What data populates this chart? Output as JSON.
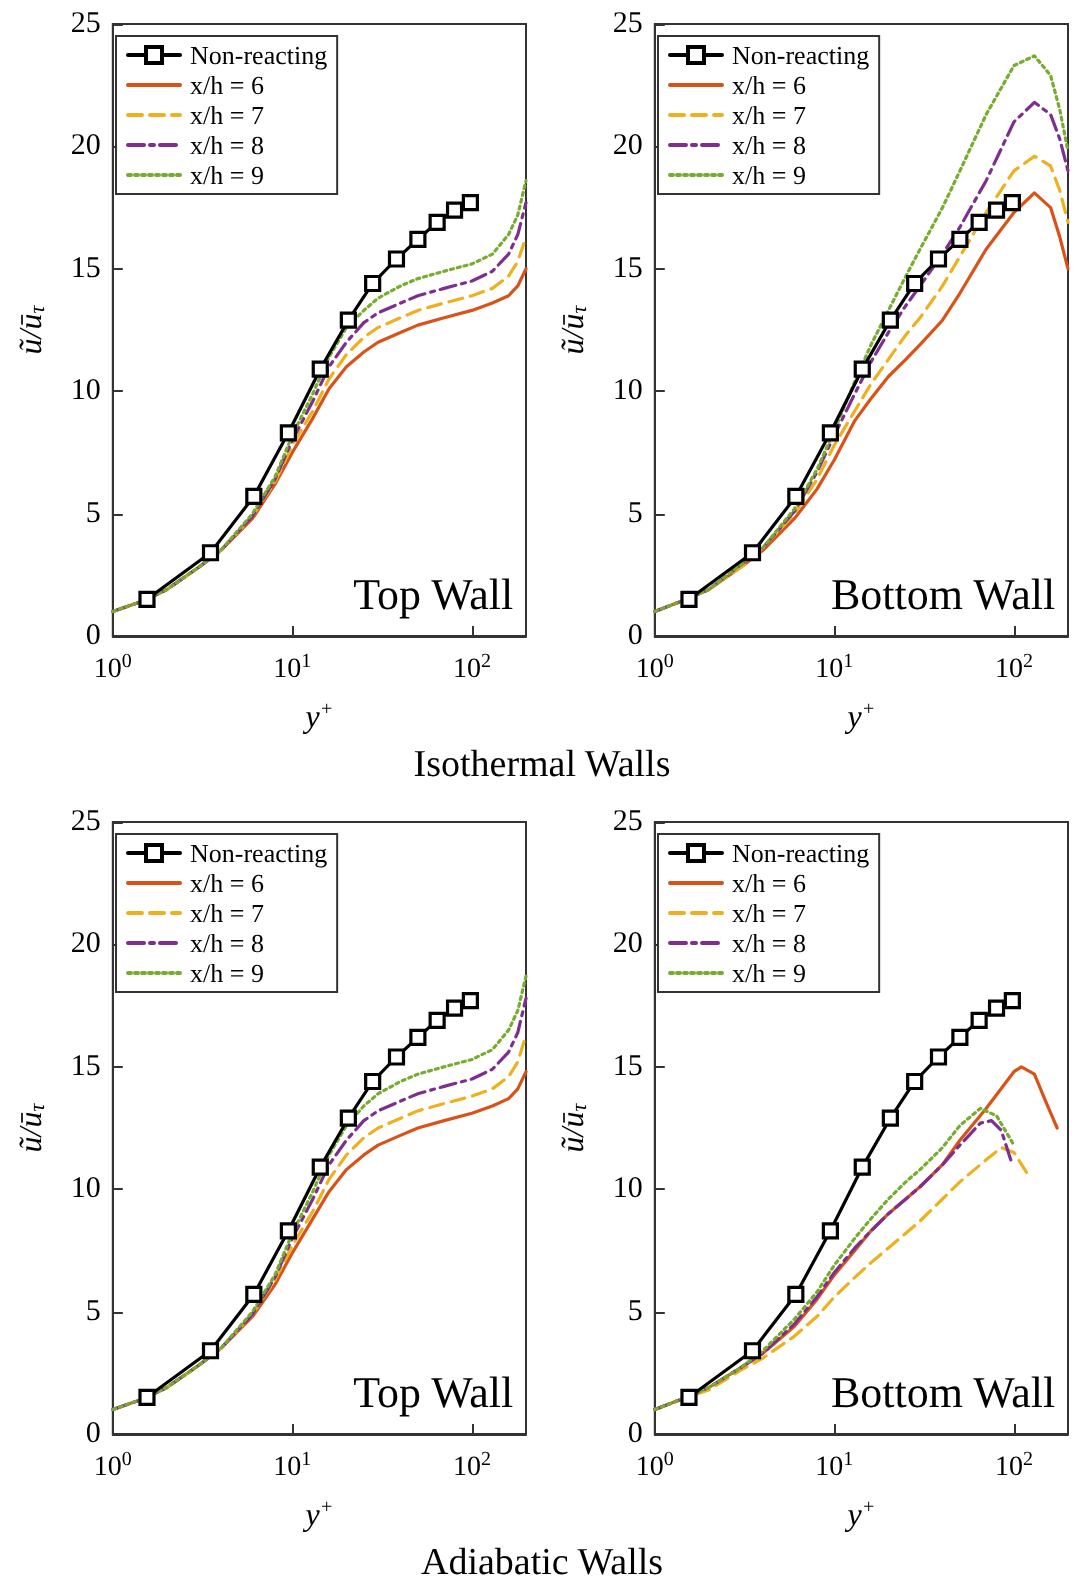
{
  "chart_data": [
    {
      "type": "line",
      "xlabel": "y$^{+}$",
      "ylabel": "ũ/ū$_{τ}$",
      "annotations": [
        "Top Wall",
        "Isothermal Walls"
      ],
      "log": "x",
      "xlim": [
        1,
        200
      ],
      "ylim": [
        0,
        25
      ],
      "xticks": [
        {
          "value": 1,
          "label": "10$^{0}$"
        },
        {
          "value": 10,
          "label": "10$^{1}$"
        },
        {
          "value": 100,
          "label": "10$^{2}$"
        }
      ],
      "yticks": [
        0,
        5,
        10,
        15,
        20,
        25
      ],
      "grid": false,
      "legend": "top left",
      "series": [
        {
          "name": "Non-reacting",
          "color": "#000000",
          "marker": "square",
          "line_style": "solid",
          "x": [
            1.55,
            3.5,
            6.1,
            9.5,
            14.3,
            20.5,
            28,
            38,
            50,
            64,
            80,
            98
          ],
          "values": [
            1.5,
            3.4,
            5.7,
            8.3,
            10.9,
            12.9,
            14.4,
            15.4,
            16.2,
            16.9,
            17.4,
            17.7
          ]
        },
        {
          "name": "x/h = 6",
          "color": "#d95319",
          "line_style": "solid",
          "x": [
            1,
            1.5,
            2,
            3,
            4,
            6,
            8,
            10,
            13,
            16,
            20,
            25,
            30,
            40,
            50,
            70,
            100,
            130,
            160,
            180,
            200
          ],
          "values": [
            1,
            1.45,
            1.9,
            2.8,
            3.5,
            4.8,
            6.2,
            7.5,
            8.9,
            10.1,
            11.0,
            11.6,
            12.0,
            12.4,
            12.7,
            13.0,
            13.3,
            13.6,
            13.9,
            14.3,
            15.0
          ]
        },
        {
          "name": "x/h = 7",
          "color": "#edb120",
          "line_style": "dashed",
          "x": [
            2,
            3,
            4,
            6,
            8,
            10,
            13,
            16,
            20,
            25,
            30,
            40,
            50,
            70,
            100,
            130,
            160,
            180,
            200
          ],
          "values": [
            1.9,
            2.8,
            3.5,
            4.9,
            6.3,
            7.8,
            9.2,
            10.5,
            11.5,
            12.2,
            12.6,
            13.0,
            13.3,
            13.6,
            13.9,
            14.2,
            14.7,
            15.3,
            16.3
          ]
        },
        {
          "name": "x/h = 8",
          "color": "#7e2f8e",
          "line_style": "dashdot",
          "x": [
            1,
            1.5,
            2,
            3,
            4,
            6,
            8,
            10,
            13,
            16,
            20,
            25,
            30,
            40,
            50,
            70,
            100,
            130,
            160,
            180,
            200
          ],
          "values": [
            1,
            1.45,
            1.9,
            2.8,
            3.5,
            4.9,
            6.4,
            8.0,
            9.6,
            11.0,
            12.0,
            12.8,
            13.2,
            13.6,
            13.9,
            14.2,
            14.5,
            14.9,
            15.6,
            16.4,
            17.7
          ]
        },
        {
          "name": "x/h = 9",
          "color": "#77ac30",
          "line_style": "dotted",
          "x": [
            1,
            1.5,
            2,
            3,
            4,
            6,
            8,
            10,
            13,
            16,
            20,
            25,
            30,
            40,
            50,
            70,
            100,
            130,
            160,
            180,
            200
          ],
          "values": [
            1,
            1.45,
            1.9,
            2.8,
            3.5,
            5.0,
            6.5,
            8.2,
            9.9,
            11.4,
            12.6,
            13.3,
            13.8,
            14.3,
            14.6,
            14.9,
            15.2,
            15.6,
            16.4,
            17.2,
            18.6
          ]
        }
      ]
    },
    {
      "type": "line",
      "xlabel": "y$^{+}$",
      "ylabel": "ũ/ū$_{τ}$",
      "annotations": [
        "Bottom Wall"
      ],
      "log": "x",
      "xlim": [
        1,
        200
      ],
      "ylim": [
        0,
        25
      ],
      "xticks": [
        {
          "value": 1,
          "label": "10$^{0}$"
        },
        {
          "value": 10,
          "label": "10$^{1}$"
        },
        {
          "value": 100,
          "label": "10$^{2}$"
        }
      ],
      "yticks": [
        0,
        5,
        10,
        15,
        20,
        25
      ],
      "grid": false,
      "legend": "top left",
      "series": [
        {
          "name": "Non-reacting",
          "color": "#000000",
          "marker": "square",
          "line_style": "solid",
          "x": [
            1.55,
            3.5,
            6.1,
            9.5,
            14.3,
            20.5,
            28,
            38,
            50,
            64,
            80,
            98
          ],
          "values": [
            1.5,
            3.4,
            5.7,
            8.3,
            10.9,
            12.9,
            14.4,
            15.4,
            16.2,
            16.9,
            17.4,
            17.7
          ]
        },
        {
          "name": "x/h = 6",
          "color": "#d95319",
          "line_style": "solid",
          "x": [
            1,
            1.5,
            2,
            3,
            4,
            6,
            8,
            10,
            13,
            16,
            20,
            25,
            30,
            40,
            50,
            70,
            100,
            130,
            160,
            180,
            200
          ],
          "values": [
            1,
            1.5,
            1.9,
            2.8,
            3.5,
            4.8,
            6.0,
            7.2,
            8.8,
            9.7,
            10.6,
            11.3,
            11.9,
            12.9,
            14.0,
            15.8,
            17.3,
            18.1,
            17.5,
            16.3,
            15.0
          ]
        },
        {
          "name": "x/h = 7",
          "color": "#edb120",
          "line_style": "dashed",
          "x": [
            1,
            1.5,
            2,
            3,
            4,
            6,
            8,
            10,
            13,
            16,
            20,
            25,
            30,
            40,
            50,
            70,
            100,
            130,
            160,
            180,
            200
          ],
          "values": [
            1,
            1.5,
            1.9,
            2.8,
            3.6,
            5.0,
            6.4,
            7.8,
            9.2,
            10.3,
            11.3,
            12.3,
            13.0,
            14.3,
            15.5,
            17.3,
            19.0,
            19.6,
            19.2,
            18.2,
            16.9
          ]
        },
        {
          "name": "x/h = 8",
          "color": "#7e2f8e",
          "line_style": "dashdot",
          "x": [
            1,
            1.5,
            2,
            3,
            4,
            6,
            8,
            10,
            13,
            16,
            20,
            25,
            30,
            40,
            50,
            70,
            100,
            130,
            160,
            180,
            200
          ],
          "values": [
            1,
            1.5,
            1.9,
            2.9,
            3.6,
            5.1,
            6.7,
            8.2,
            9.9,
            11.2,
            12.4,
            13.5,
            14.3,
            15.6,
            16.7,
            18.6,
            21.0,
            21.8,
            21.3,
            20.3,
            19.0
          ]
        },
        {
          "name": "x/h = 9",
          "color": "#77ac30",
          "line_style": "dotted",
          "x": [
            1,
            1.5,
            2,
            3,
            4,
            6,
            8,
            10,
            13,
            16,
            20,
            25,
            30,
            40,
            50,
            70,
            100,
            130,
            160,
            180,
            200
          ],
          "values": [
            1,
            1.5,
            1.9,
            2.9,
            3.6,
            5.2,
            6.8,
            8.4,
            10.4,
            11.9,
            13.3,
            14.7,
            15.8,
            17.5,
            19.0,
            21.3,
            23.3,
            23.7,
            22.9,
            21.5,
            19.8
          ]
        }
      ]
    },
    {
      "type": "line",
      "xlabel": "y$^{+}$",
      "ylabel": "ũ/ū$_{τ}$",
      "annotations": [
        "Top Wall",
        "Adiabatic Walls"
      ],
      "log": "x",
      "xlim": [
        1,
        200
      ],
      "ylim": [
        0,
        25
      ],
      "xticks": [
        {
          "value": 1,
          "label": "10$^{0}$"
        },
        {
          "value": 10,
          "label": "10$^{1}$"
        },
        {
          "value": 100,
          "label": "10$^{2}$"
        }
      ],
      "yticks": [
        0,
        5,
        10,
        15,
        20,
        25
      ],
      "grid": false,
      "legend": "top left",
      "series": [
        {
          "name": "Non-reacting",
          "color": "#000000",
          "marker": "square",
          "line_style": "solid",
          "x": [
            1.55,
            3.5,
            6.1,
            9.5,
            14.3,
            20.5,
            28,
            38,
            50,
            64,
            80,
            98
          ],
          "values": [
            1.5,
            3.4,
            5.7,
            8.3,
            10.9,
            12.9,
            14.4,
            15.4,
            16.2,
            16.9,
            17.4,
            17.7
          ]
        },
        {
          "name": "x/h = 6",
          "color": "#d95319",
          "line_style": "solid",
          "x": [
            1,
            1.5,
            2,
            3,
            4,
            6,
            8,
            10,
            13,
            16,
            20,
            25,
            30,
            40,
            50,
            70,
            100,
            130,
            160,
            180,
            200
          ],
          "values": [
            1,
            1.45,
            1.9,
            2.8,
            3.5,
            4.8,
            6.1,
            7.4,
            8.8,
            9.9,
            10.8,
            11.4,
            11.8,
            12.2,
            12.5,
            12.8,
            13.1,
            13.4,
            13.7,
            14.1,
            14.8
          ]
        },
        {
          "name": "x/h = 7",
          "color": "#edb120",
          "line_style": "dashed",
          "x": [
            2,
            3,
            4,
            6,
            8,
            10,
            13,
            16,
            20,
            25,
            30,
            40,
            50,
            70,
            100,
            130,
            160,
            180,
            200
          ],
          "values": [
            1.9,
            2.8,
            3.5,
            4.9,
            6.3,
            7.7,
            9.1,
            10.4,
            11.4,
            12.1,
            12.5,
            12.9,
            13.2,
            13.5,
            13.8,
            14.1,
            14.6,
            15.2,
            16.3
          ]
        },
        {
          "name": "x/h = 8",
          "color": "#7e2f8e",
          "line_style": "dashdot",
          "x": [
            1,
            1.5,
            2,
            3,
            4,
            6,
            8,
            10,
            13,
            16,
            20,
            25,
            30,
            40,
            50,
            70,
            100,
            130,
            160,
            180,
            200
          ],
          "values": [
            1,
            1.45,
            1.9,
            2.8,
            3.5,
            4.9,
            6.4,
            8.0,
            9.6,
            11.0,
            12.0,
            12.8,
            13.2,
            13.6,
            13.9,
            14.2,
            14.5,
            14.9,
            15.6,
            16.4,
            17.8
          ]
        },
        {
          "name": "x/h = 9",
          "color": "#77ac30",
          "line_style": "dotted",
          "x": [
            1,
            1.5,
            2,
            3,
            4,
            6,
            8,
            10,
            13,
            16,
            20,
            25,
            30,
            40,
            50,
            70,
            100,
            130,
            160,
            180,
            200
          ],
          "values": [
            1,
            1.45,
            1.9,
            2.8,
            3.5,
            5.0,
            6.5,
            8.2,
            9.9,
            11.4,
            12.6,
            13.4,
            13.9,
            14.4,
            14.7,
            15.0,
            15.3,
            15.7,
            16.5,
            17.3,
            18.7
          ]
        }
      ]
    },
    {
      "type": "line",
      "xlabel": "y$^{+}$",
      "ylabel": "ũ/ū$_{τ}$",
      "annotations": [
        "Bottom Wall"
      ],
      "log": "x",
      "xlim": [
        1,
        200
      ],
      "ylim": [
        0,
        25
      ],
      "xticks": [
        {
          "value": 1,
          "label": "10$^{0}$"
        },
        {
          "value": 10,
          "label": "10$^{1}$"
        },
        {
          "value": 100,
          "label": "10$^{2}$"
        }
      ],
      "yticks": [
        0,
        5,
        10,
        15,
        20,
        25
      ],
      "grid": false,
      "legend": "top left",
      "series": [
        {
          "name": "Non-reacting",
          "color": "#000000",
          "marker": "square",
          "line_style": "solid",
          "x": [
            1.55,
            3.5,
            6.1,
            9.5,
            14.3,
            20.5,
            28,
            38,
            50,
            64,
            80,
            98
          ],
          "values": [
            1.5,
            3.4,
            5.7,
            8.3,
            10.9,
            12.9,
            14.4,
            15.4,
            16.2,
            16.9,
            17.4,
            17.7
          ]
        },
        {
          "name": "x/h = 6",
          "color": "#d95319",
          "line_style": "solid",
          "x": [
            1,
            1.5,
            2,
            3,
            4,
            6,
            8,
            10,
            13,
            16,
            20,
            25,
            30,
            40,
            50,
            70,
            100,
            110,
            130,
            150,
            174
          ],
          "values": [
            1,
            1.5,
            1.9,
            2.7,
            3.3,
            4.4,
            5.5,
            6.5,
            7.5,
            8.3,
            9.0,
            9.6,
            10.1,
            11.0,
            12.0,
            13.3,
            14.8,
            15.0,
            14.7,
            13.6,
            12.5
          ]
        },
        {
          "name": "x/h = 7",
          "color": "#edb120",
          "line_style": "dashed",
          "x": [
            1,
            1.5,
            2,
            3,
            4,
            6,
            8,
            10,
            13,
            16,
            20,
            25,
            30,
            40,
            50,
            70,
            85,
            100,
            122
          ],
          "values": [
            1,
            1.5,
            1.8,
            2.6,
            3.1,
            4.0,
            4.8,
            5.6,
            6.4,
            7.0,
            7.6,
            8.2,
            8.7,
            9.6,
            10.3,
            11.2,
            11.7,
            11.5,
            10.5
          ]
        },
        {
          "name": "x/h = 8",
          "color": "#7e2f8e",
          "line_style": "dashdot",
          "x": [
            1,
            1.5,
            2,
            3,
            4,
            6,
            8,
            10,
            13,
            16,
            20,
            25,
            30,
            40,
            50,
            65,
            75,
            85,
            98
          ],
          "values": [
            1,
            1.5,
            1.9,
            2.7,
            3.3,
            4.5,
            5.6,
            6.6,
            7.6,
            8.3,
            9.0,
            9.6,
            10.1,
            11.0,
            11.8,
            12.7,
            12.8,
            12.4,
            11.0
          ]
        },
        {
          "name": "x/h = 9",
          "color": "#77ac30",
          "line_style": "dotted",
          "x": [
            1,
            1.5,
            2,
            3,
            4,
            6,
            8,
            10,
            13,
            16,
            20,
            25,
            30,
            40,
            50,
            65,
            80,
            100
          ],
          "values": [
            1,
            1.5,
            1.9,
            2.7,
            3.4,
            4.7,
            5.8,
            6.9,
            8.0,
            8.8,
            9.6,
            10.3,
            10.8,
            11.7,
            12.6,
            13.3,
            13.0,
            11.8
          ]
        }
      ]
    }
  ]
}
